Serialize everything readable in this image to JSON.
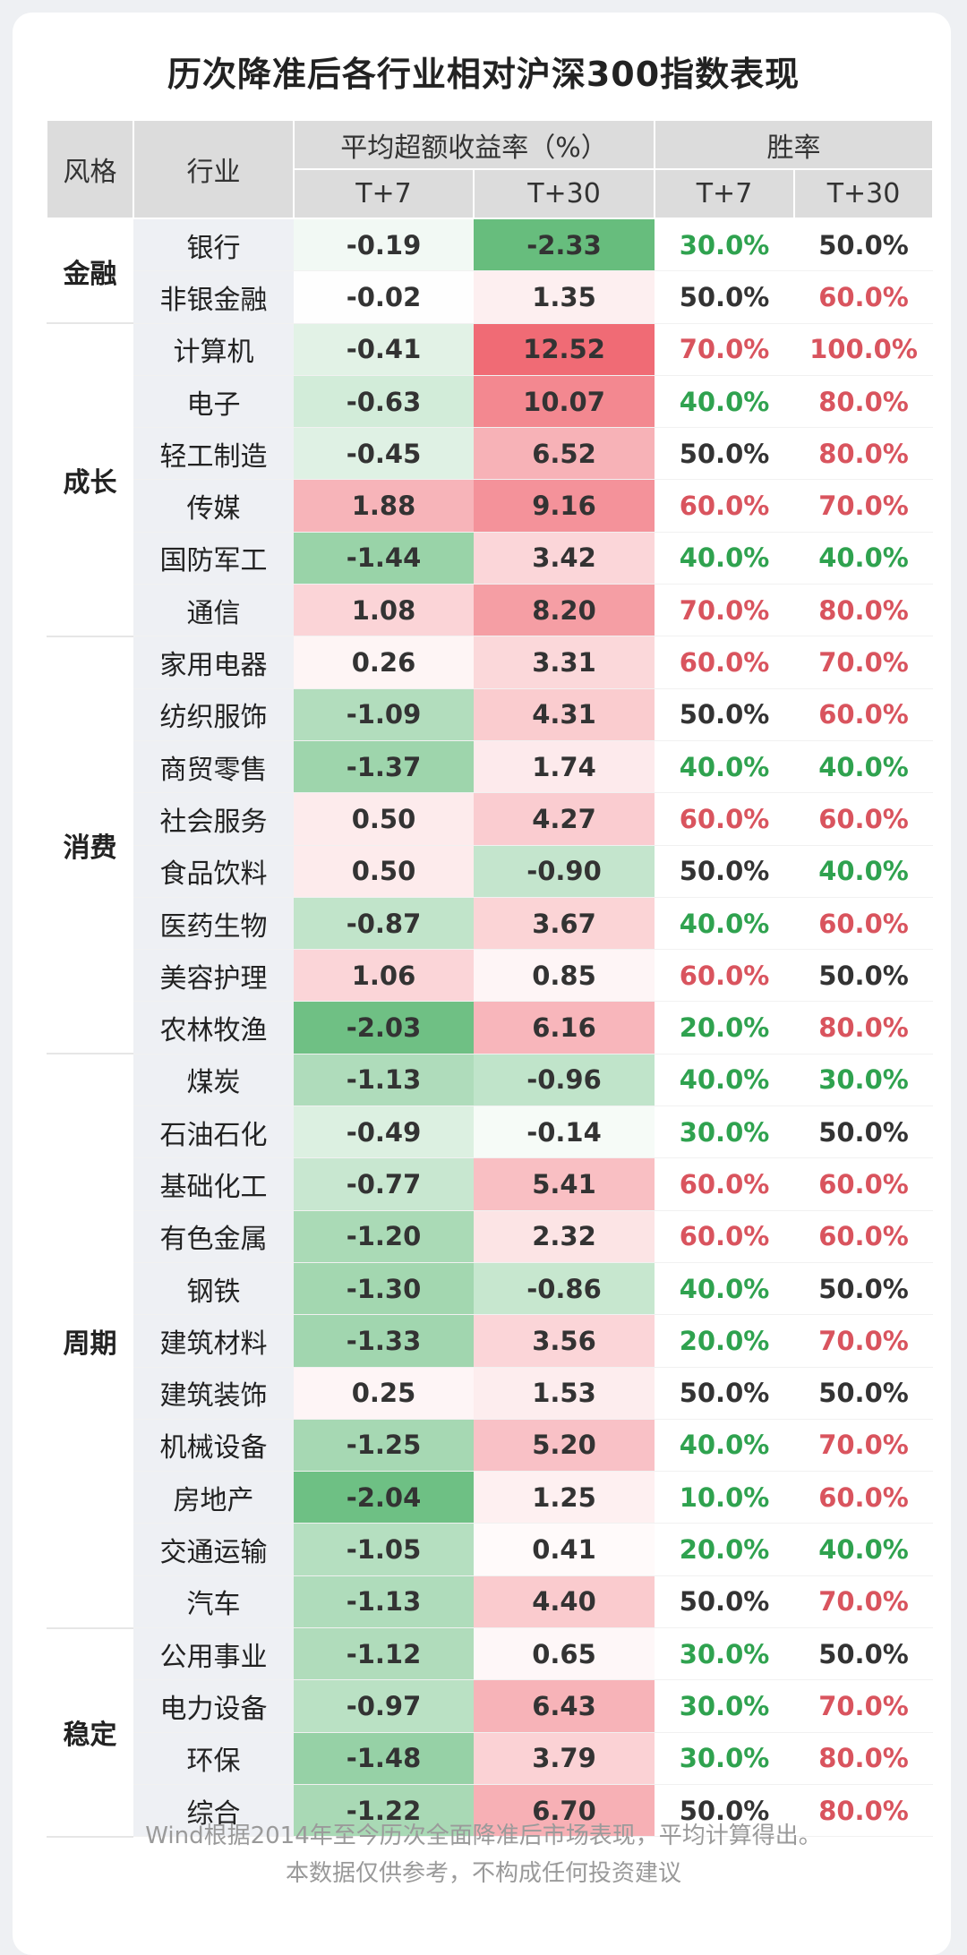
{
  "title": "历次降准后各行业相对沪深300指数表现",
  "colors": {
    "green": "#5cb874",
    "red": "#ef5f6a",
    "win_green": "#2fa24f",
    "win_red": "#d9545e",
    "neutral": "#333333"
  },
  "chart_data": {
    "type": "table",
    "title": "历次降准后各行业相对沪深300指数表现",
    "headers": {
      "style": "风格",
      "industry": "行业",
      "excess_group": "平均超额收益率（%）",
      "win_group": "胜率",
      "t7": "T+7",
      "t30": "T+30"
    },
    "groups": [
      {
        "name": "金融",
        "rows": 2
      },
      {
        "name": "成长",
        "rows": 6
      },
      {
        "name": "消费",
        "rows": 8
      },
      {
        "name": "周期",
        "rows": 11
      },
      {
        "name": "稳定",
        "rows": 4
      }
    ],
    "rows": [
      [
        "银行",
        "-0.19",
        "-2.33",
        "30.0%",
        "50.0%"
      ],
      [
        "非银金融",
        "-0.02",
        "1.35",
        "50.0%",
        "60.0%"
      ],
      [
        "计算机",
        "-0.41",
        "12.52",
        "70.0%",
        "100.0%"
      ],
      [
        "电子",
        "-0.63",
        "10.07",
        "40.0%",
        "80.0%"
      ],
      [
        "轻工制造",
        "-0.45",
        "6.52",
        "50.0%",
        "80.0%"
      ],
      [
        "传媒",
        "1.88",
        "9.16",
        "60.0%",
        "70.0%"
      ],
      [
        "国防军工",
        "-1.44",
        "3.42",
        "40.0%",
        "40.0%"
      ],
      [
        "通信",
        "1.08",
        "8.20",
        "70.0%",
        "80.0%"
      ],
      [
        "家用电器",
        "0.26",
        "3.31",
        "60.0%",
        "70.0%"
      ],
      [
        "纺织服饰",
        "-1.09",
        "4.31",
        "50.0%",
        "60.0%"
      ],
      [
        "商贸零售",
        "-1.37",
        "1.74",
        "40.0%",
        "40.0%"
      ],
      [
        "社会服务",
        "0.50",
        "4.27",
        "60.0%",
        "60.0%"
      ],
      [
        "食品饮料",
        "0.50",
        "-0.90",
        "50.0%",
        "40.0%"
      ],
      [
        "医药生物",
        "-0.87",
        "3.67",
        "40.0%",
        "60.0%"
      ],
      [
        "美容护理",
        "1.06",
        "0.85",
        "60.0%",
        "50.0%"
      ],
      [
        "农林牧渔",
        "-2.03",
        "6.16",
        "20.0%",
        "80.0%"
      ],
      [
        "煤炭",
        "-1.13",
        "-0.96",
        "40.0%",
        "30.0%"
      ],
      [
        "石油石化",
        "-0.49",
        "-0.14",
        "30.0%",
        "50.0%"
      ],
      [
        "基础化工",
        "-0.77",
        "5.41",
        "60.0%",
        "60.0%"
      ],
      [
        "有色金属",
        "-1.20",
        "2.32",
        "60.0%",
        "60.0%"
      ],
      [
        "钢铁",
        "-1.30",
        "-0.86",
        "40.0%",
        "50.0%"
      ],
      [
        "建筑材料",
        "-1.33",
        "3.56",
        "20.0%",
        "70.0%"
      ],
      [
        "建筑装饰",
        "0.25",
        "1.53",
        "50.0%",
        "50.0%"
      ],
      [
        "机械设备",
        "-1.25",
        "5.20",
        "40.0%",
        "70.0%"
      ],
      [
        "房地产",
        "-2.04",
        "1.25",
        "10.0%",
        "60.0%"
      ],
      [
        "交通运输",
        "-1.05",
        "0.41",
        "20.0%",
        "40.0%"
      ],
      [
        "汽车",
        "-1.13",
        "4.40",
        "50.0%",
        "70.0%"
      ],
      [
        "公用事业",
        "-1.12",
        "0.65",
        "30.0%",
        "50.0%"
      ],
      [
        "电力设备",
        "-0.97",
        "6.43",
        "30.0%",
        "70.0%"
      ],
      [
        "环保",
        "-1.48",
        "3.79",
        "30.0%",
        "80.0%"
      ],
      [
        "综合",
        "-1.22",
        "6.70",
        "50.0%",
        "80.0%"
      ]
    ]
  },
  "footnote": {
    "line1": "Wind根据2014年至今历次全面降准后市场表现，平均计算得出。",
    "line2": "本数据仅供参考，不构成任何投资建议"
  }
}
